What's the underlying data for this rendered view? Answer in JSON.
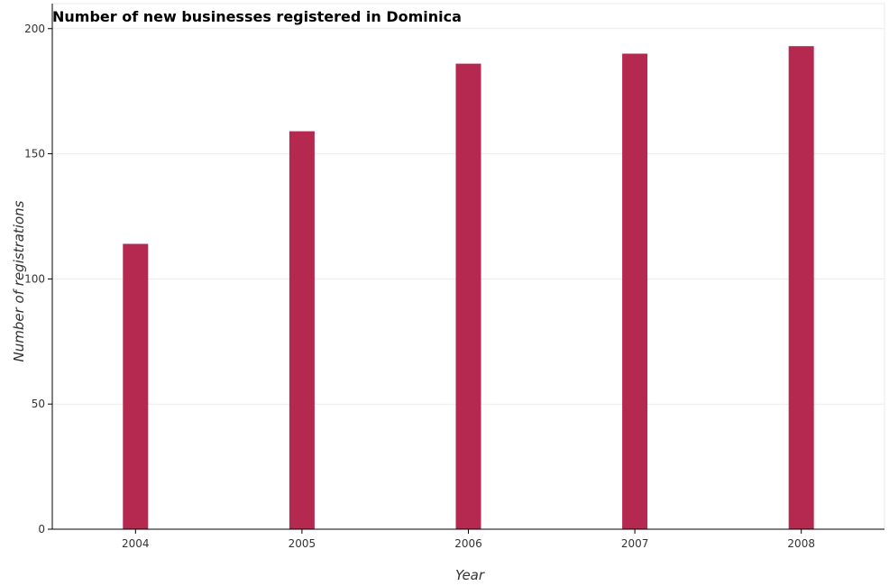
{
  "chart_data": {
    "type": "bar",
    "title": "Number of new businesses registered in Dominica",
    "xlabel": "Year",
    "ylabel": "Number of registrations",
    "categories": [
      "2004",
      "2005",
      "2006",
      "2007",
      "2008"
    ],
    "values": [
      114,
      159,
      186,
      190,
      193
    ],
    "ylim": [
      0,
      210
    ],
    "yticks": [
      0,
      50,
      100,
      150,
      200
    ],
    "grid": true,
    "legend": "none",
    "bar_color": "#b5284f",
    "grid_color": "#ebebeb"
  }
}
